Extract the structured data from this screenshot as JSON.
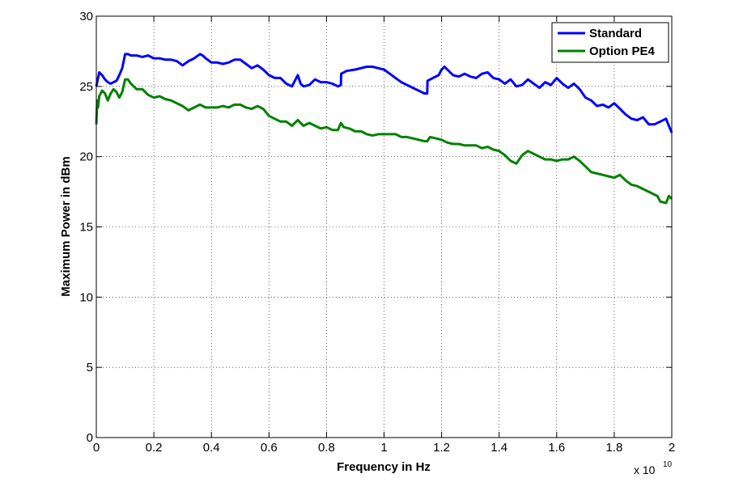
{
  "chart_data": {
    "type": "line",
    "title": "",
    "xlabel": "Frequency in Hz",
    "ylabel": "Maximum Power in dBm",
    "x_exponent_base": "x 10",
    "x_exponent_power": "10",
    "xlim": [
      0,
      2
    ],
    "ylim": [
      0,
      30
    ],
    "x_ticks": [
      0,
      0.2,
      0.4,
      0.6,
      0.8,
      1,
      1.2,
      1.4,
      1.6,
      1.8,
      2
    ],
    "x_tick_labels": [
      "0",
      "0.2",
      "0.4",
      "0.6",
      "0.8",
      "1",
      "1.2",
      "1.4",
      "1.6",
      "1.8",
      "2"
    ],
    "y_ticks": [
      0,
      5,
      10,
      15,
      20,
      25,
      30
    ],
    "y_tick_labels": [
      "0",
      "5",
      "10",
      "15",
      "20",
      "25",
      "30"
    ],
    "grid": true,
    "legend_position": "top-right",
    "series": [
      {
        "name": "Standard",
        "color": "#0000ff",
        "x": [
          0,
          0.005,
          0.01,
          0.02,
          0.03,
          0.04,
          0.05,
          0.06,
          0.07,
          0.08,
          0.09,
          0.1,
          0.11,
          0.12,
          0.14,
          0.16,
          0.18,
          0.2,
          0.22,
          0.24,
          0.26,
          0.28,
          0.3,
          0.32,
          0.34,
          0.36,
          0.37,
          0.38,
          0.4,
          0.42,
          0.44,
          0.46,
          0.48,
          0.5,
          0.52,
          0.54,
          0.56,
          0.58,
          0.6,
          0.62,
          0.64,
          0.66,
          0.68,
          0.7,
          0.71,
          0.72,
          0.74,
          0.76,
          0.78,
          0.8,
          0.82,
          0.84,
          0.85,
          0.851,
          0.87,
          0.9,
          0.94,
          0.96,
          0.98,
          1.0,
          1.02,
          1.04,
          1.06,
          1.08,
          1.1,
          1.12,
          1.14,
          1.15,
          1.151,
          1.17,
          1.19,
          1.2,
          1.21,
          1.22,
          1.24,
          1.26,
          1.28,
          1.3,
          1.32,
          1.34,
          1.36,
          1.38,
          1.4,
          1.42,
          1.44,
          1.46,
          1.48,
          1.5,
          1.52,
          1.54,
          1.56,
          1.58,
          1.6,
          1.62,
          1.64,
          1.66,
          1.68,
          1.7,
          1.72,
          1.74,
          1.76,
          1.78,
          1.8,
          1.82,
          1.84,
          1.86,
          1.88,
          1.9,
          1.92,
          1.94,
          1.96,
          1.98,
          1.99,
          2.0
        ],
        "y": [
          25.0,
          25.5,
          26.0,
          25.8,
          25.5,
          25.3,
          25.2,
          25.3,
          25.4,
          25.8,
          26.3,
          27.3,
          27.3,
          27.2,
          27.2,
          27.1,
          27.2,
          27.0,
          27.0,
          26.9,
          26.9,
          26.8,
          26.5,
          26.8,
          27.0,
          27.3,
          27.2,
          27.0,
          26.7,
          26.7,
          26.6,
          26.7,
          26.9,
          26.9,
          26.6,
          26.3,
          26.5,
          26.2,
          25.8,
          25.6,
          25.6,
          25.2,
          25.0,
          25.8,
          25.2,
          25.0,
          25.1,
          25.5,
          25.3,
          25.3,
          25.2,
          25.0,
          25.1,
          25.9,
          26.1,
          26.2,
          26.4,
          26.4,
          26.3,
          26.2,
          25.9,
          25.6,
          25.3,
          25.1,
          24.9,
          24.7,
          24.5,
          24.5,
          25.4,
          25.6,
          25.8,
          26.2,
          26.4,
          26.2,
          25.8,
          25.7,
          25.9,
          25.7,
          25.6,
          25.9,
          26.0,
          25.6,
          25.5,
          25.2,
          25.5,
          25.0,
          25.1,
          25.5,
          25.2,
          24.9,
          25.3,
          25.1,
          25.6,
          25.2,
          24.9,
          25.2,
          24.8,
          24.2,
          24.0,
          23.6,
          23.7,
          23.5,
          23.8,
          23.4,
          23.0,
          22.7,
          22.6,
          22.8,
          22.3,
          22.3,
          22.5,
          22.7,
          22.2,
          21.7
        ]
      },
      {
        "name": "Option PE4",
        "color": "#008000",
        "x": [
          0,
          0.003,
          0.006,
          0.01,
          0.02,
          0.03,
          0.04,
          0.05,
          0.06,
          0.07,
          0.08,
          0.09,
          0.1,
          0.11,
          0.12,
          0.14,
          0.16,
          0.18,
          0.2,
          0.22,
          0.24,
          0.26,
          0.28,
          0.3,
          0.32,
          0.34,
          0.36,
          0.38,
          0.4,
          0.42,
          0.44,
          0.46,
          0.48,
          0.5,
          0.52,
          0.54,
          0.56,
          0.58,
          0.6,
          0.62,
          0.64,
          0.66,
          0.68,
          0.7,
          0.72,
          0.74,
          0.76,
          0.78,
          0.8,
          0.82,
          0.84,
          0.85,
          0.86,
          0.88,
          0.9,
          0.92,
          0.94,
          0.96,
          0.98,
          1.0,
          1.02,
          1.04,
          1.06,
          1.08,
          1.1,
          1.12,
          1.14,
          1.15,
          1.16,
          1.18,
          1.2,
          1.22,
          1.24,
          1.26,
          1.28,
          1.3,
          1.32,
          1.34,
          1.36,
          1.38,
          1.4,
          1.42,
          1.44,
          1.46,
          1.48,
          1.5,
          1.52,
          1.54,
          1.56,
          1.58,
          1.6,
          1.62,
          1.64,
          1.66,
          1.68,
          1.7,
          1.72,
          1.74,
          1.76,
          1.78,
          1.8,
          1.82,
          1.84,
          1.86,
          1.88,
          1.9,
          1.92,
          1.94,
          1.95,
          1.96,
          1.98,
          1.99,
          2.0
        ],
        "y": [
          22.3,
          24.0,
          23.5,
          24.3,
          24.7,
          24.5,
          24.0,
          24.5,
          24.8,
          24.6,
          24.2,
          24.6,
          25.5,
          25.5,
          25.2,
          24.8,
          24.8,
          24.4,
          24.2,
          24.3,
          24.1,
          24.0,
          23.8,
          23.6,
          23.3,
          23.5,
          23.7,
          23.5,
          23.5,
          23.5,
          23.6,
          23.5,
          23.7,
          23.7,
          23.5,
          23.4,
          23.6,
          23.4,
          22.9,
          22.7,
          22.5,
          22.5,
          22.2,
          22.6,
          22.2,
          22.4,
          22.2,
          22.0,
          22.1,
          21.9,
          21.9,
          22.4,
          22.1,
          22.0,
          21.8,
          21.8,
          21.6,
          21.5,
          21.6,
          21.6,
          21.6,
          21.6,
          21.4,
          21.4,
          21.3,
          21.2,
          21.1,
          21.1,
          21.4,
          21.3,
          21.2,
          21.0,
          20.9,
          20.9,
          20.8,
          20.8,
          20.8,
          20.6,
          20.7,
          20.5,
          20.4,
          20.1,
          19.7,
          19.5,
          20.1,
          20.4,
          20.2,
          20.0,
          19.8,
          19.8,
          19.7,
          19.8,
          19.8,
          20.0,
          19.7,
          19.3,
          18.9,
          18.8,
          18.7,
          18.6,
          18.5,
          18.7,
          18.3,
          18.0,
          17.9,
          17.7,
          17.5,
          17.3,
          17.2,
          16.8,
          16.7,
          17.2,
          17.0
        ]
      }
    ]
  }
}
